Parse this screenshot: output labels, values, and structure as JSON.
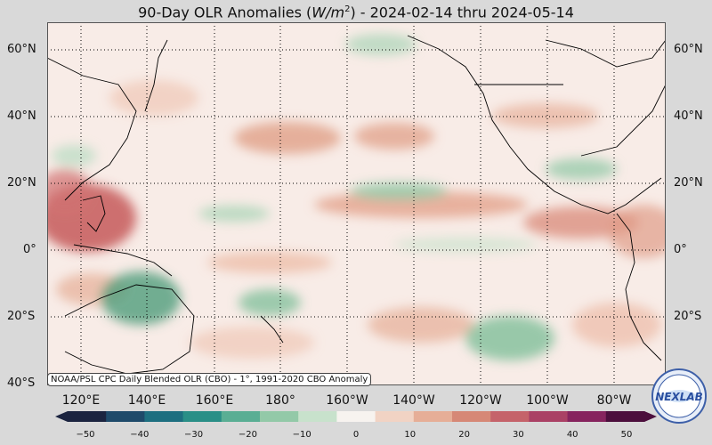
{
  "title": {
    "prefix": "90-Day OLR Anomalies (",
    "unit_var": "W/m",
    "unit_exp": "2",
    "suffix": ") - 2024-02-14 thru 2024-05-14"
  },
  "lat_labels": [
    "60°N",
    "40°N",
    "20°N",
    "0°",
    "20°S",
    "40°S"
  ],
  "lon_labels": [
    "120°E",
    "140°E",
    "160°E",
    "180°",
    "160°W",
    "140°W",
    "120°W",
    "100°W",
    "80°W"
  ],
  "source_note": "NOAA/PSL CPC Daily Blended OLR (CBO) - 1°, 1991-2020 CBO Anomaly",
  "colorbar": {
    "ticks": [
      "−50",
      "−40",
      "−30",
      "−20",
      "−10",
      "0",
      "10",
      "20",
      "30",
      "40",
      "50"
    ],
    "colors": [
      "#1b2440",
      "#1f4a6a",
      "#1e6f80",
      "#2a8f87",
      "#5aae94",
      "#93c9a8",
      "#c8e2cc",
      "#f7f3ef",
      "#f1d3c4",
      "#e6ae97",
      "#d68876",
      "#c5636a",
      "#aa4165",
      "#86245e",
      "#4c0f3d"
    ]
  },
  "colors": {
    "positive": "#d98a78",
    "strong_positive": "#c65a5a",
    "negative": "#7fbf9a",
    "strong_negative": "#4f9e7c",
    "background": "#f7ebe6"
  },
  "logo": {
    "text": "NEXLAB",
    "icon": "nexlab-globe-logo"
  }
}
